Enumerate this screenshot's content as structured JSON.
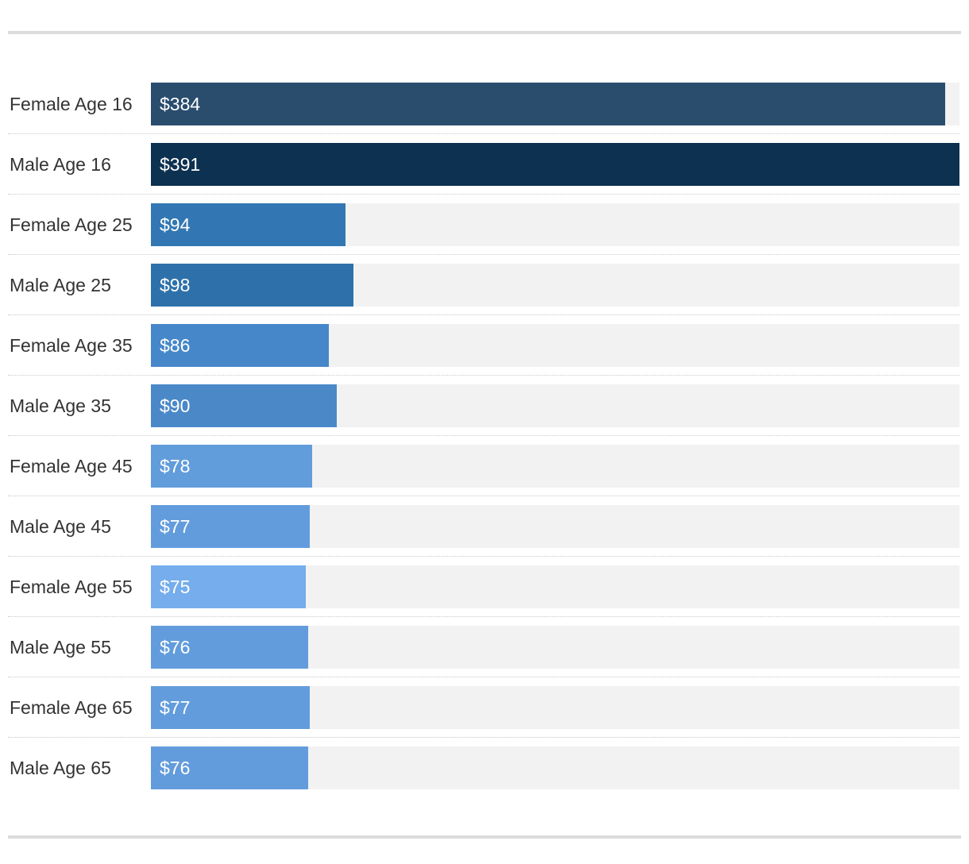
{
  "chart_data": {
    "type": "bar",
    "orientation": "horizontal",
    "title": "",
    "xlabel": "",
    "ylabel": "",
    "xlim": [
      0,
      391
    ],
    "grid": false,
    "legend": "none",
    "categories": [
      "Female Age 16",
      "Male Age 16",
      "Female Age 25",
      "Male Age 25",
      "Female Age 35",
      "Male Age 35",
      "Female Age 45",
      "Male Age 45",
      "Female Age 55",
      "Male Age 55",
      "Female Age 65",
      "Male Age 65"
    ],
    "values": [
      384,
      391,
      94,
      98,
      86,
      90,
      78,
      77,
      75,
      76,
      77,
      76
    ],
    "value_labels": [
      "$384",
      "$391",
      "$94",
      "$98",
      "$86",
      "$90",
      "$78",
      "$77",
      "$75",
      "$76",
      "$77",
      "$76"
    ],
    "colors": [
      "#2a4d6e",
      "#0d3150",
      "#3277b3",
      "#2e71aa",
      "#4687c9",
      "#4a88c8",
      "#619cdb",
      "#629cdc",
      "#75aded",
      "#629cdc",
      "#629cdc",
      "#629cdc"
    ],
    "track_color": "#f2f2f2"
  }
}
